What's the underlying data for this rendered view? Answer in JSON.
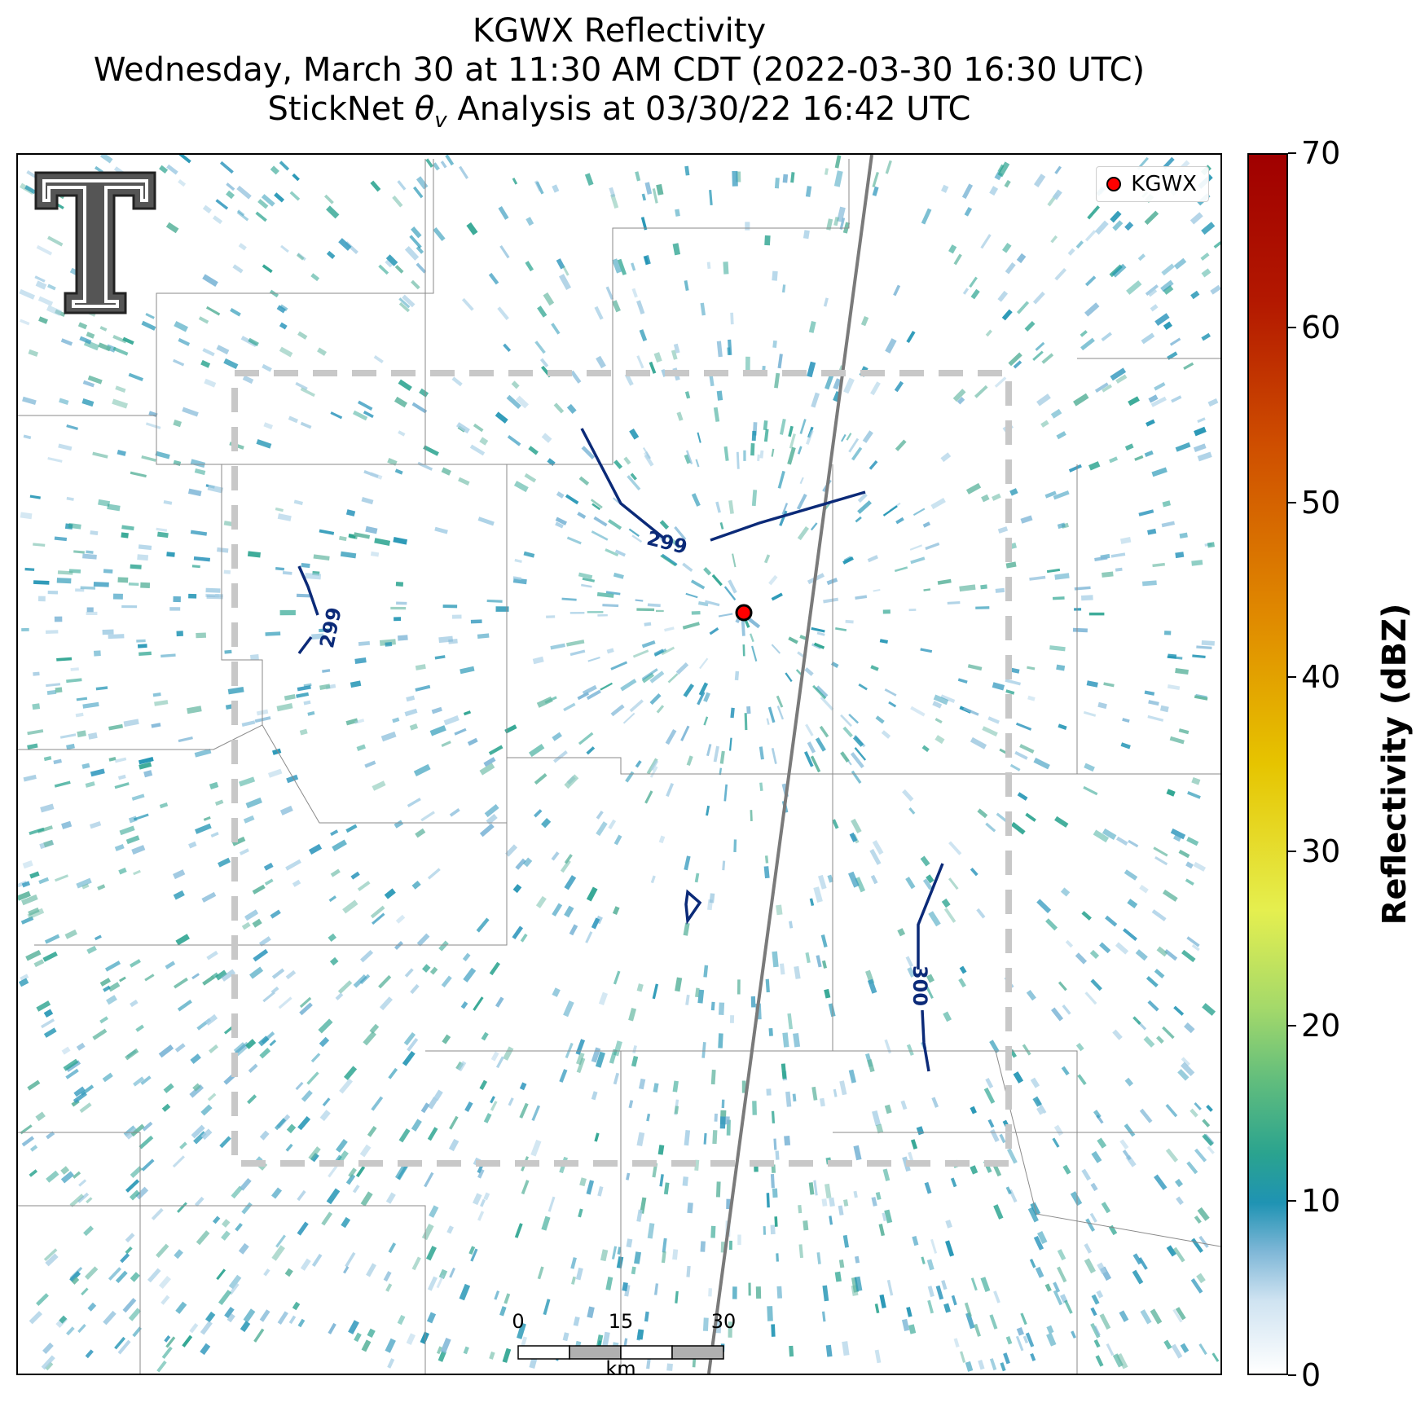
{
  "title": {
    "line1": "KGWX Reflectivity",
    "line2": "Wednesday, March 30 at 11:30 AM CDT (2022-03-30 16:30 UTC)",
    "line3": "StickNet θv Analysis at 03/30/22 16:42 UTC"
  },
  "legend": {
    "label": "KGWX",
    "marker_color": "#ff0000"
  },
  "map": {
    "radar_site": "KGWX",
    "contours": [
      {
        "label": "299",
        "color": "#0b2a78"
      },
      {
        "label": "299",
        "color": "#0b2a78"
      },
      {
        "label": "300",
        "color": "#0b2a78"
      }
    ],
    "analysis_box_color": "#c8c8c8"
  },
  "scalebar": {
    "labels": [
      "0",
      "15",
      "30"
    ],
    "unit": "km"
  },
  "colorbar": {
    "title": "Reflectivity (dBZ)",
    "ticks": [
      "0",
      "10",
      "20",
      "30",
      "40",
      "50",
      "60",
      "70"
    ],
    "min": 0,
    "max": 70
  }
}
